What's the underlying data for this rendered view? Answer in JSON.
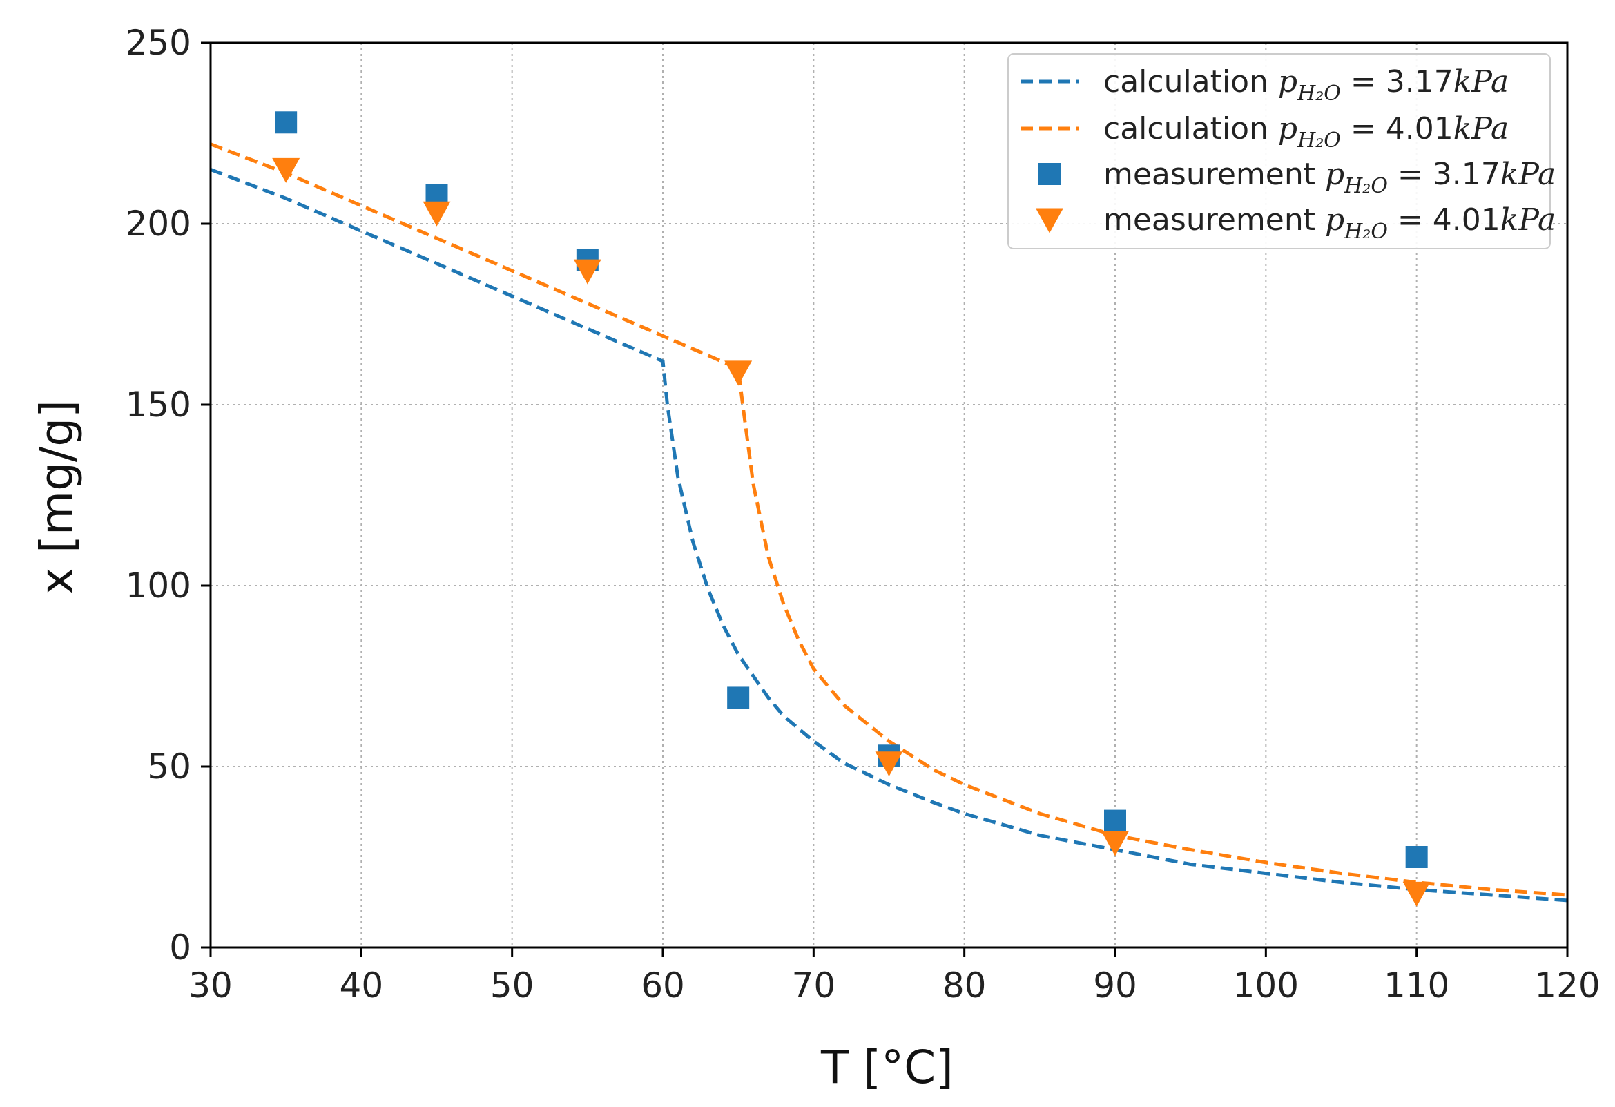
{
  "chart_data": {
    "type": "scatter",
    "title": "",
    "xlabel": "T [°C]",
    "ylabel": "x [mg/g]",
    "xlim": [
      30,
      120
    ],
    "ylim": [
      0,
      250
    ],
    "xticks": [
      30,
      40,
      50,
      60,
      70,
      80,
      90,
      100,
      110,
      120
    ],
    "yticks": [
      0,
      50,
      100,
      150,
      200,
      250
    ],
    "grid": true,
    "legend_position": "top-right",
    "series": [
      {
        "name": "calculation p_H2O = 3.17kPa",
        "legend_prefix": "calculation",
        "legend_value": "3.17",
        "legend_unit": "kPa",
        "kind": "line-dashed",
        "color": "#1f77b4",
        "x": [
          30,
          35,
          40,
          45,
          50,
          55,
          60,
          60.3,
          61,
          62,
          63,
          64,
          65,
          66,
          67,
          68,
          70,
          72,
          75,
          78,
          80,
          85,
          90,
          95,
          100,
          105,
          110,
          115,
          120
        ],
        "y": [
          215,
          207,
          198,
          189,
          180,
          171,
          162,
          150,
          130,
          112,
          99,
          89,
          81,
          75,
          69,
          64,
          57,
          51,
          45,
          40,
          37,
          31,
          27,
          23,
          20.5,
          18,
          16,
          14.5,
          13
        ]
      },
      {
        "name": "calculation p_H2O = 4.01kPa",
        "legend_prefix": "calculation",
        "legend_value": "4.01",
        "legend_unit": "kPa",
        "kind": "line-dashed",
        "color": "#ff7f0e",
        "x": [
          30,
          35,
          40,
          45,
          50,
          55,
          60,
          65,
          65.3,
          66,
          67,
          68,
          69,
          70,
          72,
          75,
          78,
          80,
          85,
          90,
          95,
          100,
          105,
          110,
          115,
          120
        ],
        "y": [
          222,
          214,
          205,
          196,
          187,
          178,
          169,
          160,
          150,
          128,
          108,
          95,
          85,
          77,
          67,
          57,
          49,
          45,
          37,
          31,
          27,
          23.5,
          20.5,
          18,
          16,
          14.5
        ]
      },
      {
        "name": "measurement p_H2O = 3.17kPa",
        "legend_prefix": "measurement",
        "legend_value": "3.17",
        "legend_unit": "kPa",
        "kind": "marker-square",
        "color": "#1f77b4",
        "x": [
          35,
          45,
          55,
          65,
          75,
          90,
          110
        ],
        "y": [
          228,
          208,
          190,
          69,
          53,
          35,
          25
        ]
      },
      {
        "name": "measurement p_H2O = 4.01kPa",
        "legend_prefix": "measurement",
        "legend_value": "4.01",
        "legend_unit": "kPa",
        "kind": "marker-triangle-down",
        "color": "#ff7f0e",
        "x": [
          35,
          45,
          55,
          65,
          75,
          90,
          110
        ],
        "y": [
          215,
          203,
          187,
          159,
          51,
          29,
          15
        ]
      }
    ]
  }
}
